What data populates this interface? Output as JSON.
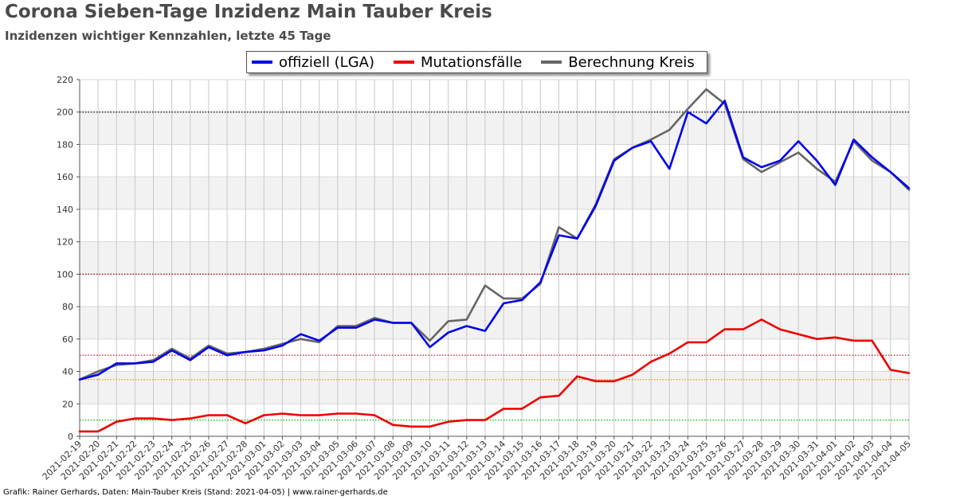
{
  "title": "Corona Sieben-Tage Inzidenz Main Tauber Kreis",
  "subtitle": "Inzidenzen wichtiger Kennzahlen, letzte 45 Tage",
  "footer": "Grafik: Rainer Gerhards, Daten: Main-Tauber Kreis (Stand: 2021-04-05) | www.rainer-gerhards.de",
  "legend": [
    {
      "label": "offiziell (LGA)",
      "color": "#0000ee"
    },
    {
      "label": "Mutationsfälle",
      "color": "#ee0000"
    },
    {
      "label": "Berechnung Kreis",
      "color": "#666666"
    }
  ],
  "chart_data": {
    "type": "line",
    "title": "Corona Sieben-Tage Inzidenz Main Tauber Kreis",
    "subtitle": "Inzidenzen wichtiger Kennzahlen, letzte 45 Tage",
    "xlabel": "",
    "ylabel": "",
    "ylim": [
      0,
      220
    ],
    "yticks": [
      0,
      20,
      40,
      60,
      80,
      100,
      120,
      140,
      160,
      180,
      200,
      220
    ],
    "grid": true,
    "banded_background": true,
    "legend_position": "top-center",
    "x": [
      "2021-02-19",
      "2021-02-20",
      "2021-02-21",
      "2021-02-22",
      "2021-02-23",
      "2021-02-24",
      "2021-02-25",
      "2021-02-26",
      "2021-02-27",
      "2021-02-28",
      "2021-03-01",
      "2021-03-02",
      "2021-03-03",
      "2021-03-04",
      "2021-03-05",
      "2021-03-06",
      "2021-03-07",
      "2021-03-08",
      "2021-03-09",
      "2021-03-10",
      "2021-03-11",
      "2021-03-12",
      "2021-03-13",
      "2021-03-14",
      "2021-03-15",
      "2021-03-16",
      "2021-03-17",
      "2021-03-18",
      "2021-03-19",
      "2021-03-20",
      "2021-03-21",
      "2021-03-22",
      "2021-03-23",
      "2021-03-24",
      "2021-03-25",
      "2021-03-26",
      "2021-03-27",
      "2021-03-28",
      "2021-03-29",
      "2021-03-30",
      "2021-03-31",
      "2021-04-01",
      "2021-04-02",
      "2021-04-03",
      "2021-04-04",
      "2021-04-05"
    ],
    "series": [
      {
        "name": "offiziell (LGA)",
        "color": "#0000ee",
        "values": [
          35,
          38,
          45,
          45,
          46,
          53,
          47,
          55,
          50,
          52,
          53,
          56,
          63,
          59,
          67,
          67,
          72,
          70,
          70,
          55,
          64,
          68,
          65,
          82,
          84,
          95,
          124,
          122,
          142,
          170,
          178,
          182,
          165,
          200,
          193,
          207,
          172,
          166,
          170,
          182,
          170,
          155,
          183,
          172,
          163,
          153
        ]
      },
      {
        "name": "Mutationsfälle",
        "color": "#ee0000",
        "values": [
          3,
          3,
          9,
          11,
          11,
          10,
          11,
          13,
          13,
          8,
          13,
          14,
          13,
          13,
          14,
          14,
          13,
          7,
          6,
          6,
          9,
          10,
          10,
          17,
          17,
          24,
          25,
          37,
          34,
          34,
          38,
          46,
          51,
          58,
          58,
          66,
          66,
          72,
          66,
          63,
          60,
          61,
          59,
          59,
          41,
          39
        ]
      },
      {
        "name": "Berechnung Kreis",
        "color": "#666666",
        "values": [
          35,
          40,
          44,
          45,
          47,
          54,
          48,
          56,
          51,
          52,
          54,
          57,
          60,
          58,
          68,
          68,
          73,
          70,
          70,
          59,
          71,
          72,
          93,
          85,
          85,
          94,
          129,
          122,
          143,
          171,
          178,
          183,
          189,
          202,
          214,
          205,
          171,
          163,
          169,
          175,
          165,
          157,
          182,
          170,
          163,
          152
        ]
      }
    ],
    "reference_lines": [
      {
        "value": 200,
        "color": "#000000"
      },
      {
        "value": 100,
        "color": "#aa0000"
      },
      {
        "value": 50,
        "color": "#cc0000"
      },
      {
        "value": 35,
        "color": "#ee9900"
      },
      {
        "value": 10,
        "color": "#00bb00"
      }
    ]
  }
}
